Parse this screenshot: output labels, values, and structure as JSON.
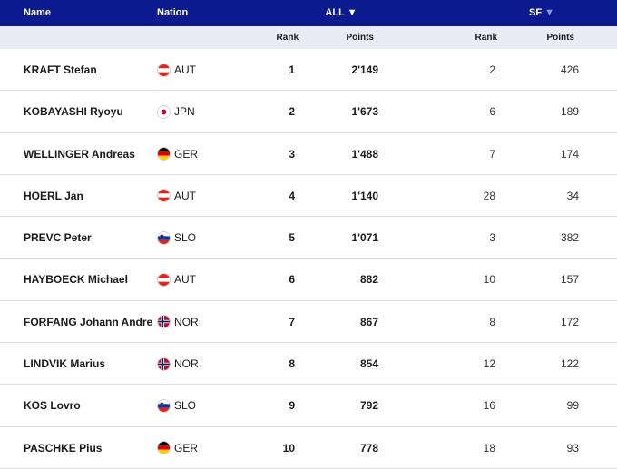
{
  "header": {
    "name_label": "Name",
    "nation_label": "Nation",
    "all_label": "ALL",
    "all_arrow": "▼",
    "sf_label": "SF",
    "sf_arrow": "▼"
  },
  "subheader": {
    "rank_all": "Rank",
    "points_all": "Points",
    "rank_sf": "Rank",
    "points_sf": "Points"
  },
  "rows": [
    {
      "name": "KRAFT Stefan",
      "nation": "AUT",
      "flag": "aut-flag-icon",
      "rank_all": "1",
      "points_all": "2'149",
      "rank_sf": "2",
      "points_sf": "426"
    },
    {
      "name": "KOBAYASHI Ryoyu",
      "nation": "JPN",
      "flag": "jpn-flag-icon",
      "rank_all": "2",
      "points_all": "1'673",
      "rank_sf": "6",
      "points_sf": "189"
    },
    {
      "name": "WELLINGER Andreas",
      "nation": "GER",
      "flag": "ger-flag-icon",
      "rank_all": "3",
      "points_all": "1'488",
      "rank_sf": "7",
      "points_sf": "174"
    },
    {
      "name": "HOERL Jan",
      "nation": "AUT",
      "flag": "aut-flag-icon",
      "rank_all": "4",
      "points_all": "1'140",
      "rank_sf": "28",
      "points_sf": "34"
    },
    {
      "name": "PREVC Peter",
      "nation": "SLO",
      "flag": "slo-flag-icon",
      "rank_all": "5",
      "points_all": "1'071",
      "rank_sf": "3",
      "points_sf": "382"
    },
    {
      "name": "HAYBOECK Michael",
      "nation": "AUT",
      "flag": "aut-flag-icon",
      "rank_all": "6",
      "points_all": "882",
      "rank_sf": "10",
      "points_sf": "157"
    },
    {
      "name": "FORFANG Johann Andre",
      "nation": "NOR",
      "flag": "nor-flag-icon",
      "rank_all": "7",
      "points_all": "867",
      "rank_sf": "8",
      "points_sf": "172"
    },
    {
      "name": "LINDVIK Marius",
      "nation": "NOR",
      "flag": "nor-flag-icon",
      "rank_all": "8",
      "points_all": "854",
      "rank_sf": "12",
      "points_sf": "122"
    },
    {
      "name": "KOS Lovro",
      "nation": "SLO",
      "flag": "slo-flag-icon",
      "rank_all": "9",
      "points_all": "792",
      "rank_sf": "16",
      "points_sf": "99"
    },
    {
      "name": "PASCHKE Pius",
      "nation": "GER",
      "flag": "ger-flag-icon",
      "rank_all": "10",
      "points_all": "778",
      "rank_sf": "18",
      "points_sf": "93"
    }
  ]
}
